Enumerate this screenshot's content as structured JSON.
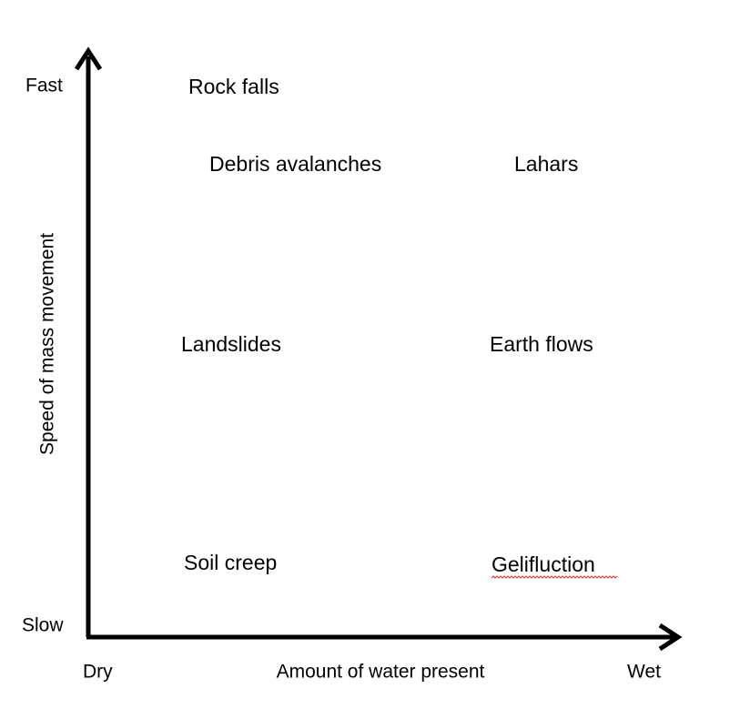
{
  "axes": {
    "y": {
      "label": "Speed of mass movement",
      "high": "Fast",
      "low": "Slow"
    },
    "x": {
      "label": "Amount of water present",
      "low": "Dry",
      "high": "Wet"
    }
  },
  "items": [
    {
      "label": "Rock falls"
    },
    {
      "label": "Debris avalanches"
    },
    {
      "label": "Lahars"
    },
    {
      "label": "Landslides"
    },
    {
      "label": "Earth flows"
    },
    {
      "label": "Soil creep"
    },
    {
      "label": "Gelifluction"
    }
  ]
}
